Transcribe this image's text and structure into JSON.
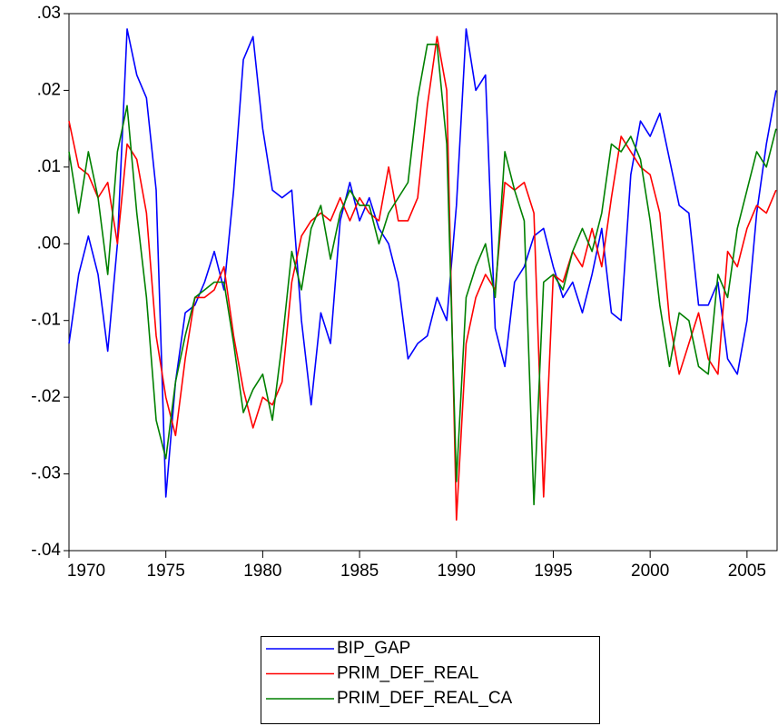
{
  "chart_data": {
    "type": "line",
    "x": [
      1970.0,
      1970.5,
      1971.0,
      1971.5,
      1972.0,
      1972.5,
      1973.0,
      1973.5,
      1974.0,
      1974.5,
      1975.0,
      1975.5,
      1976.0,
      1976.5,
      1977.0,
      1977.5,
      1978.0,
      1978.5,
      1979.0,
      1979.5,
      1980.0,
      1980.5,
      1981.0,
      1981.5,
      1982.0,
      1982.5,
      1983.0,
      1983.5,
      1984.0,
      1984.5,
      1985.0,
      1985.5,
      1986.0,
      1986.5,
      1987.0,
      1987.5,
      1988.0,
      1988.5,
      1989.0,
      1989.5,
      1990.0,
      1990.5,
      1991.0,
      1991.5,
      1992.0,
      1992.5,
      1993.0,
      1993.5,
      1994.0,
      1994.5,
      1995.0,
      1995.5,
      1996.0,
      1996.5,
      1997.0,
      1997.5,
      1998.0,
      1998.5,
      1999.0,
      1999.5,
      2000.0,
      2000.5,
      2001.0,
      2001.5,
      2002.0,
      2002.5,
      2003.0,
      2003.5,
      2004.0,
      2004.5,
      2005.0,
      2005.5,
      2006.0,
      2006.5
    ],
    "series": [
      {
        "name": "BIP_GAP",
        "color": "#0000ff",
        "values": [
          -0.013,
          -0.004,
          0.001,
          -0.004,
          -0.014,
          0.0,
          0.028,
          0.022,
          0.019,
          0.007,
          -0.033,
          -0.018,
          -0.009,
          -0.008,
          -0.005,
          -0.001,
          -0.006,
          0.007,
          0.024,
          0.027,
          0.015,
          0.007,
          0.006,
          0.007,
          -0.01,
          -0.021,
          -0.009,
          -0.013,
          0.003,
          0.008,
          0.003,
          0.006,
          0.002,
          0.0,
          -0.005,
          -0.015,
          -0.013,
          -0.012,
          -0.007,
          -0.01,
          0.005,
          0.028,
          0.02,
          0.022,
          -0.011,
          -0.016,
          -0.005,
          -0.003,
          0.001,
          0.002,
          -0.003,
          -0.007,
          -0.005,
          -0.009,
          -0.004,
          0.002,
          -0.009,
          -0.01,
          0.009,
          0.016,
          0.014,
          0.017,
          0.011,
          0.005,
          0.004,
          -0.008,
          -0.008,
          -0.005,
          -0.015,
          -0.017,
          -0.01,
          0.004,
          0.013,
          0.02
        ]
      },
      {
        "name": "PRIM_DEF_REAL",
        "color": "#ff0000",
        "values": [
          0.016,
          0.01,
          0.009,
          0.006,
          0.008,
          0.0,
          0.013,
          0.011,
          0.004,
          -0.012,
          -0.02,
          -0.025,
          -0.015,
          -0.007,
          -0.007,
          -0.006,
          -0.003,
          -0.012,
          -0.019,
          -0.024,
          -0.02,
          -0.021,
          -0.018,
          -0.005,
          0.001,
          0.003,
          0.004,
          0.003,
          0.006,
          0.003,
          0.006,
          0.004,
          0.003,
          0.01,
          0.003,
          0.003,
          0.006,
          0.018,
          0.027,
          0.02,
          -0.036,
          -0.013,
          -0.007,
          -0.004,
          -0.006,
          0.008,
          0.007,
          0.008,
          0.004,
          -0.033,
          -0.004,
          -0.005,
          -0.001,
          -0.003,
          0.002,
          -0.003,
          0.006,
          0.014,
          0.012,
          0.01,
          0.009,
          0.004,
          -0.01,
          -0.017,
          -0.013,
          -0.009,
          -0.015,
          -0.017,
          -0.001,
          -0.003,
          0.002,
          0.005,
          0.004,
          0.007
        ]
      },
      {
        "name": "PRIM_DEF_REAL_CA",
        "color": "#008000",
        "values": [
          0.012,
          0.004,
          0.012,
          0.006,
          -0.004,
          0.012,
          0.018,
          0.004,
          -0.007,
          -0.023,
          -0.028,
          -0.018,
          -0.012,
          -0.007,
          -0.006,
          -0.005,
          -0.005,
          -0.013,
          -0.022,
          -0.019,
          -0.017,
          -0.023,
          -0.013,
          -0.001,
          -0.006,
          0.002,
          0.005,
          -0.002,
          0.004,
          0.007,
          0.005,
          0.005,
          0.0,
          0.004,
          0.006,
          0.008,
          0.019,
          0.026,
          0.026,
          0.013,
          -0.031,
          -0.007,
          -0.003,
          0.0,
          -0.007,
          0.012,
          0.007,
          0.003,
          -0.034,
          -0.005,
          -0.004,
          -0.006,
          -0.001,
          0.002,
          -0.001,
          0.004,
          0.013,
          0.012,
          0.014,
          0.011,
          0.003,
          -0.008,
          -0.016,
          -0.009,
          -0.01,
          -0.016,
          -0.017,
          -0.004,
          -0.007,
          0.002,
          0.007,
          0.012,
          0.01,
          0.015
        ]
      }
    ],
    "xlim": [
      1970,
      2006.6
    ],
    "xticks": [
      1970,
      1975,
      1980,
      1985,
      1990,
      1995,
      2000,
      2005
    ],
    "ylim": [
      -0.04,
      0.03
    ],
    "yticks": [
      {
        "value": 0.03,
        "label": ".03"
      },
      {
        "value": 0.02,
        "label": ".02"
      },
      {
        "value": 0.01,
        "label": ".01"
      },
      {
        "value": 0,
        "label": ".00"
      },
      {
        "value": -0.01,
        "label": "-.01"
      },
      {
        "value": -0.02,
        "label": "-.02"
      },
      {
        "value": -0.03,
        "label": "-.03"
      },
      {
        "value": -0.04,
        "label": "-.04"
      }
    ]
  }
}
